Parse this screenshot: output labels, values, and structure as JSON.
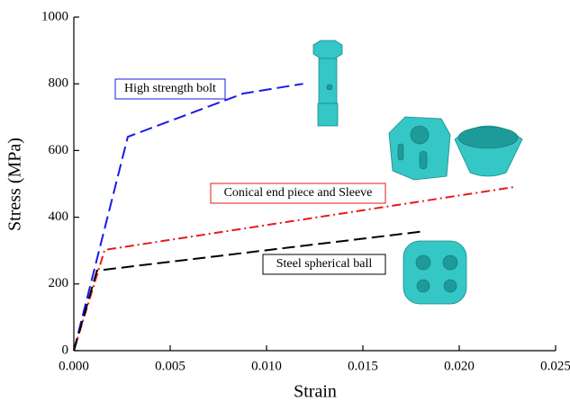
{
  "chart_data": {
    "type": "line",
    "xlabel": "Strain",
    "ylabel": "Stress (MPa)",
    "xlim": [
      0,
      0.025
    ],
    "xticks": [
      {
        "value": 0,
        "label": "0.000"
      },
      {
        "value": 0.005,
        "label": "0.005"
      },
      {
        "value": 0.01,
        "label": "0.010"
      },
      {
        "value": 0.015,
        "label": "0.015"
      },
      {
        "value": 0.02,
        "label": "0.020"
      },
      {
        "value": 0.025,
        "label": "0.025"
      }
    ],
    "ylim": [
      0,
      1000
    ],
    "yticks": [
      0,
      200,
      400,
      600,
      800,
      1000
    ],
    "series": [
      {
        "name": "High strength bolt",
        "color": "#1a1ae6",
        "dash": "dashed",
        "x": [
          0,
          0.0028,
          0.0088,
          0.0119
        ],
        "values": [
          0,
          641,
          771,
          800
        ]
      },
      {
        "name": "Conical end piece and Sleeve",
        "color": "#e61a1a",
        "dash": "dashdot",
        "x": [
          0,
          0.0016,
          0.0228
        ],
        "values": [
          0,
          302,
          490
        ]
      },
      {
        "name": "Steel spherical ball",
        "color": "#000000",
        "dash": "dashed",
        "x": [
          0,
          0.0012,
          0.0182
        ],
        "values": [
          0,
          240,
          358
        ]
      }
    ]
  }
}
